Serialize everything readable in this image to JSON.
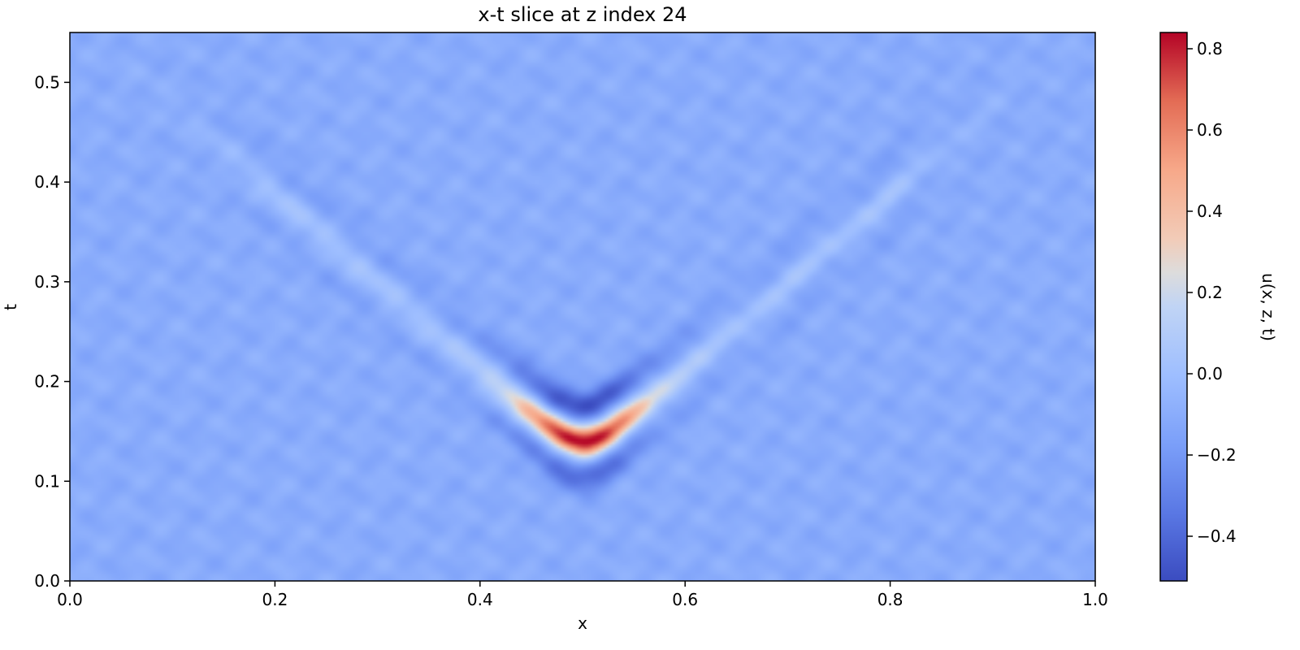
{
  "chart_data": {
    "type": "heatmap",
    "title": "x-t slice at z index 24",
    "xlabel": "x",
    "ylabel": "t",
    "xlim": [
      0.0,
      1.0
    ],
    "ylim": [
      0.0,
      0.55
    ],
    "x_ticks": [
      0.0,
      0.2,
      0.4,
      0.6,
      0.8,
      1.0
    ],
    "x_tick_labels": [
      "0.0",
      "0.2",
      "0.4",
      "0.6",
      "0.8",
      "1.0"
    ],
    "y_ticks": [
      0.0,
      0.1,
      0.2,
      0.3,
      0.4,
      0.5
    ],
    "y_tick_labels": [
      "0.0",
      "0.1",
      "0.2",
      "0.3",
      "0.4",
      "0.5"
    ],
    "colormap": "coolwarm",
    "colorbar": {
      "label": "u(x, z, t)",
      "vmin": -0.51,
      "vmax": 0.84,
      "ticks": [
        -0.4,
        -0.2,
        0.0,
        0.2,
        0.4,
        0.6,
        0.8
      ],
      "tick_labels": [
        "−0.4",
        "−0.2",
        "0.0",
        "0.2",
        "0.4",
        "0.6",
        "0.8"
      ]
    },
    "background_value": -0.1,
    "features": [
      {
        "name": "v-shaped positive wavefront",
        "apex_x": 0.5,
        "apex_t": 0.14,
        "peak_value": 0.84
      },
      {
        "name": "negative lobe above wavefront",
        "apex_x": 0.5,
        "apex_t": 0.175,
        "peak_value": -0.42
      },
      {
        "name": "negative lobe below wavefront",
        "apex_x": 0.5,
        "apex_t": 0.1,
        "peak_value": -0.32
      }
    ]
  }
}
